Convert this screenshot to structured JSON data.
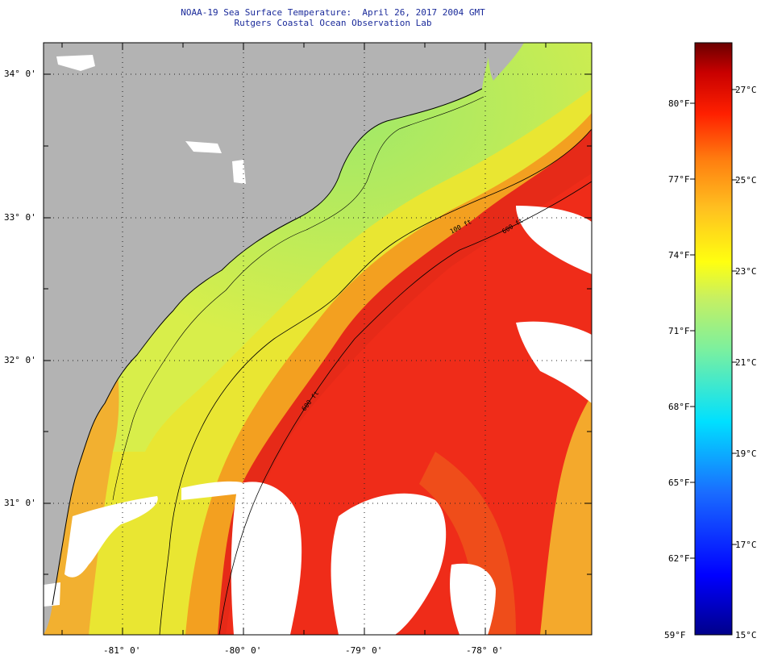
{
  "header": {
    "title": "NOAA-19 Sea Surface Temperature:  April 26, 2017 2004 GMT",
    "subtitle": "Rutgers Coastal Ocean Observation Lab"
  },
  "map": {
    "lat_labels": [
      "34° 0'",
      "33° 0'",
      "32° 0'",
      "31° 0'"
    ],
    "lon_labels": [
      "-81° 0'",
      "-80° 0'",
      "-79° 0'",
      "-78° 0'"
    ],
    "isobath_labels": [
      "100 ft",
      "600 ft",
      "600 ft"
    ],
    "colors": {
      "land": "#b3b3b3",
      "cloud": "#ffffff",
      "warm": "#e8261a",
      "mid": "#f5a21e",
      "cool": "#a6e872"
    }
  },
  "colorbar": {
    "fahrenheit": [
      "80°F",
      "77°F",
      "74°F",
      "71°F",
      "68°F",
      "65°F",
      "62°F",
      "59°F"
    ],
    "celsius": [
      "27°C",
      "25°C",
      "23°C",
      "21°C",
      "19°C",
      "17°C",
      "15°C"
    ]
  }
}
